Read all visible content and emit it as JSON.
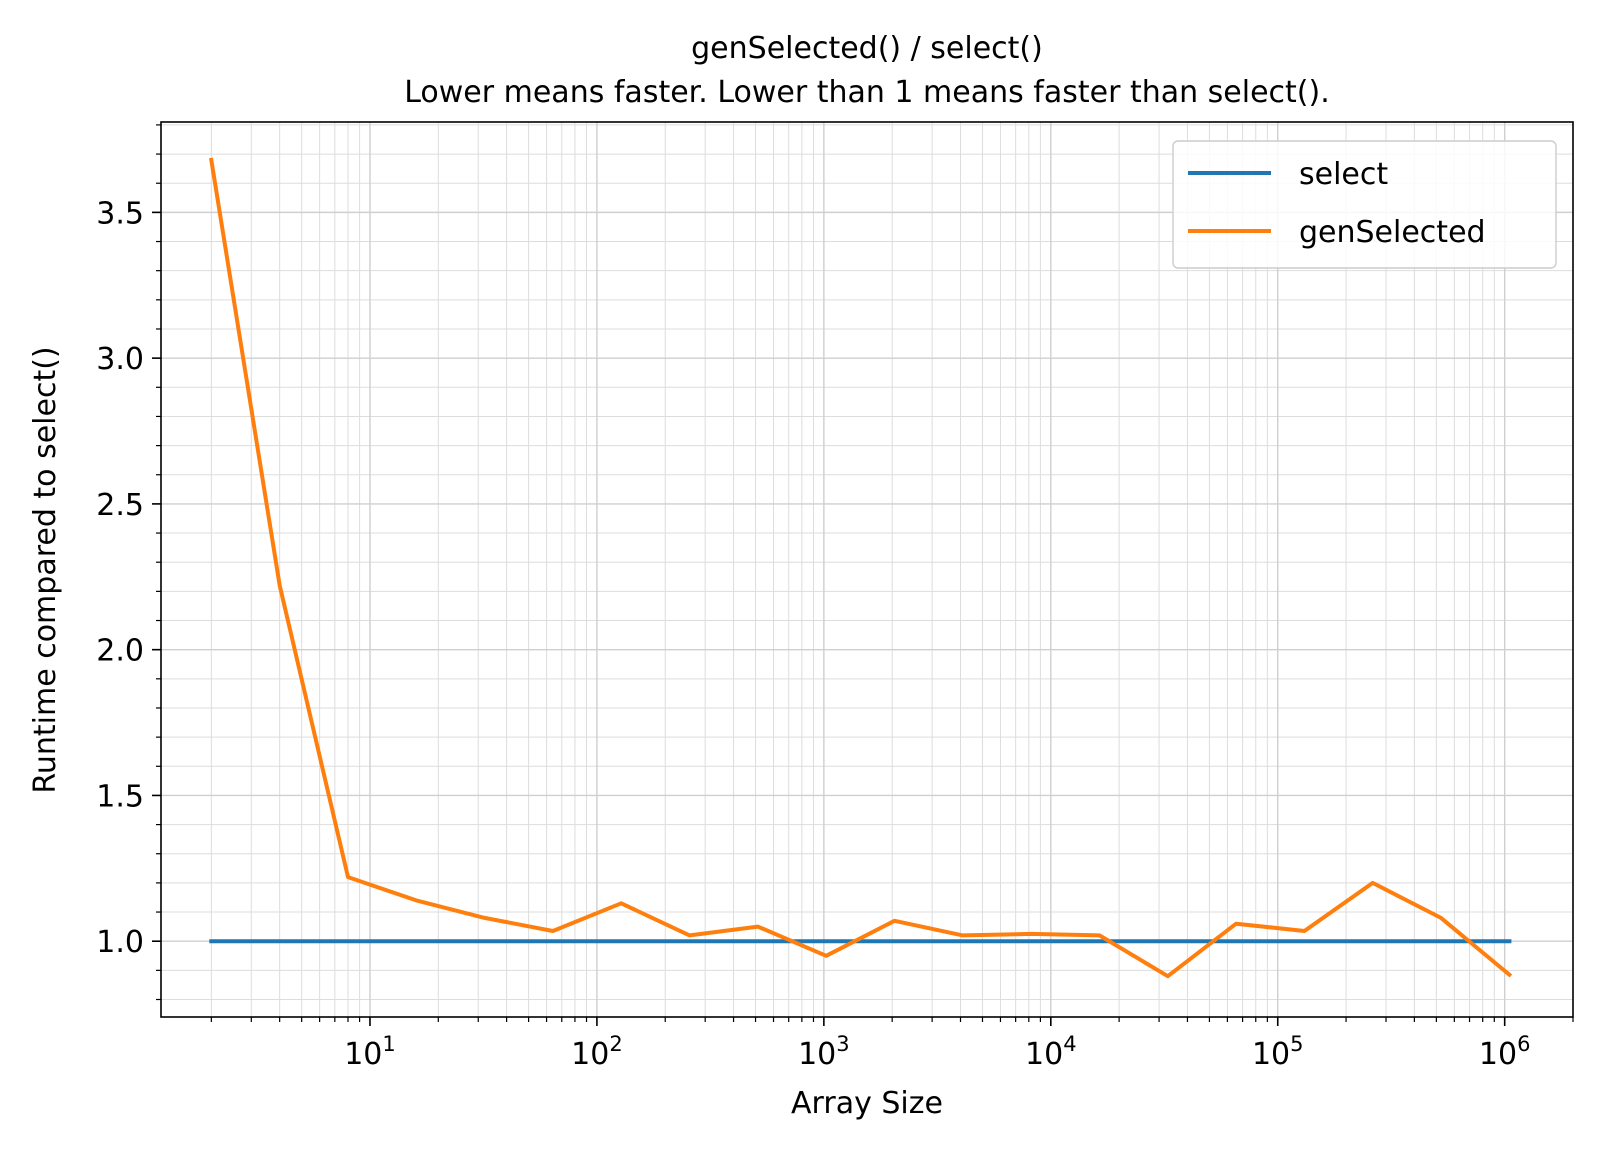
{
  "chart_data": {
    "type": "line",
    "title": "genSelected() / select()",
    "subtitle": "Lower means faster. Lower than 1 means faster than select().",
    "xlabel": "Array Size",
    "ylabel": "Runtime compared to select()",
    "xscale": "log",
    "xlim": [
      1.2,
      2000000
    ],
    "ylim": [
      0.74,
      3.81
    ],
    "x_ticks": [
      {
        "value": 10,
        "base": "10",
        "exp": "1"
      },
      {
        "value": 100,
        "base": "10",
        "exp": "2"
      },
      {
        "value": 1000,
        "base": "10",
        "exp": "3"
      },
      {
        "value": 10000,
        "base": "10",
        "exp": "4"
      },
      {
        "value": 100000,
        "base": "10",
        "exp": "5"
      },
      {
        "value": 1000000,
        "base": "10",
        "exp": "6"
      }
    ],
    "y_ticks": [
      {
        "value": 1.0,
        "label": "1.0"
      },
      {
        "value": 1.5,
        "label": "1.5"
      },
      {
        "value": 2.0,
        "label": "2.0"
      },
      {
        "value": 2.5,
        "label": "2.5"
      },
      {
        "value": 3.0,
        "label": "3.0"
      },
      {
        "value": 3.5,
        "label": "3.5"
      }
    ],
    "grid": true,
    "legend_position": "top-right",
    "series": [
      {
        "name": "select",
        "color": "#1f77b4",
        "x": [
          2,
          4,
          8,
          16,
          32,
          64,
          128,
          256,
          512,
          1024,
          2048,
          4096,
          8192,
          16384,
          32768,
          65536,
          131072,
          262144,
          524288,
          1048576
        ],
        "y": [
          1,
          1,
          1,
          1,
          1,
          1,
          1,
          1,
          1,
          1,
          1,
          1,
          1,
          1,
          1,
          1,
          1,
          1,
          1,
          1
        ]
      },
      {
        "name": "genSelected",
        "color": "#ff7f0e",
        "x": [
          2,
          4,
          8,
          16,
          32,
          64,
          128,
          256,
          512,
          1024,
          2048,
          4096,
          8192,
          16384,
          32768,
          65536,
          131072,
          262144,
          524288,
          1048576
        ],
        "y": [
          3.68,
          2.22,
          1.22,
          1.14,
          1.08,
          1.035,
          1.13,
          1.02,
          1.05,
          0.95,
          1.07,
          1.02,
          1.025,
          1.02,
          0.88,
          1.06,
          1.035,
          1.2,
          1.08,
          0.885
        ]
      }
    ]
  }
}
